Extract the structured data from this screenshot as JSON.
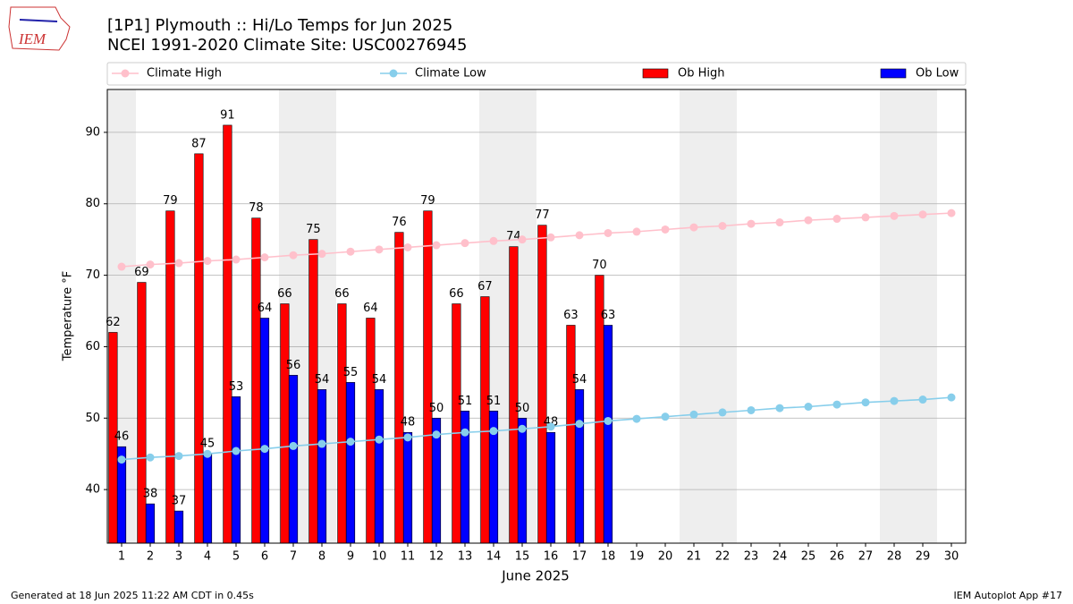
{
  "logo_text": "IEM",
  "footer_left": "Generated at 18 Jun 2025 11:22 AM CDT in 0.45s",
  "footer_right": "IEM Autoplot App #17",
  "chart_data": {
    "type": "bar",
    "title": "[1P1] Plymouth :: Hi/Lo Temps for Jun 2025",
    "subtitle": "NCEI 1991-2020 Climate Site: USC00276945",
    "x_label": "June 2025",
    "y_label": "Temperature °F",
    "categories": [
      "1",
      "2",
      "3",
      "4",
      "5",
      "6",
      "7",
      "8",
      "9",
      "10",
      "11",
      "12",
      "13",
      "14",
      "15",
      "16",
      "17",
      "18",
      "19",
      "20",
      "21",
      "22",
      "23",
      "24",
      "25",
      "26",
      "27",
      "28",
      "29",
      "30"
    ],
    "shaded_days": [
      1,
      7,
      8,
      14,
      15,
      21,
      22,
      28,
      29
    ],
    "shade_color": "#eeeeee",
    "ylim": [
      32.5,
      96
    ],
    "yticks": [
      40,
      50,
      60,
      70,
      80,
      90
    ],
    "grid": true,
    "series": [
      {
        "name": "Climate High",
        "type": "line",
        "color": "#ffc0cb",
        "values": [
          71.2,
          71.5,
          71.7,
          72.0,
          72.2,
          72.5,
          72.8,
          73.0,
          73.3,
          73.6,
          73.9,
          74.2,
          74.5,
          74.8,
          75.0,
          75.3,
          75.6,
          75.9,
          76.1,
          76.4,
          76.7,
          76.9,
          77.2,
          77.4,
          77.7,
          77.9,
          78.1,
          78.3,
          78.5,
          78.7
        ]
      },
      {
        "name": "Climate Low",
        "type": "line",
        "color": "#87ceeb",
        "values": [
          44.2,
          44.5,
          44.7,
          45.0,
          45.4,
          45.7,
          46.1,
          46.4,
          46.7,
          47.0,
          47.3,
          47.7,
          48.0,
          48.2,
          48.5,
          48.8,
          49.2,
          49.6,
          49.9,
          50.2,
          50.5,
          50.8,
          51.1,
          51.4,
          51.6,
          51.9,
          52.2,
          52.4,
          52.6,
          52.9
        ]
      },
      {
        "name": "Ob High",
        "type": "bar",
        "color": "#ff0000",
        "values": [
          62,
          69,
          79,
          87,
          91,
          78,
          66,
          75,
          66,
          64,
          76,
          79,
          66,
          67,
          74,
          77,
          63,
          70,
          null,
          null,
          null,
          null,
          null,
          null,
          null,
          null,
          null,
          null,
          null,
          null
        ]
      },
      {
        "name": "Ob Low",
        "type": "bar",
        "color": "#0000ff",
        "values": [
          46,
          38,
          37,
          45,
          53,
          64,
          56,
          54,
          55,
          54,
          48,
          50,
          51,
          51,
          50,
          48,
          54,
          63,
          null,
          null,
          null,
          null,
          null,
          null,
          null,
          null,
          null,
          null,
          null,
          null
        ]
      }
    ]
  }
}
